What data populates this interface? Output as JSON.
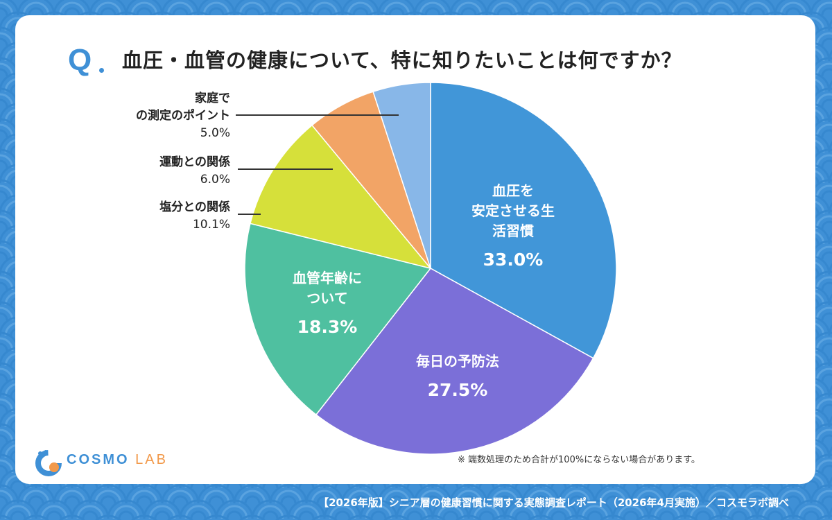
{
  "question": {
    "mark": "Q",
    "text": "血圧・血管の健康について、特に知りたいことは何ですか？"
  },
  "chart_data": {
    "type": "pie",
    "start_angle_deg": 0,
    "direction": "clockwise",
    "slices": [
      {
        "label_lines": [
          "血圧を",
          "安定させる生",
          "活習慣"
        ],
        "value": 33.0,
        "display": "33.0%",
        "color": "#4196d8",
        "label_placement": "inside"
      },
      {
        "label_lines": [
          "毎日の予防法"
        ],
        "value": 27.5,
        "display": "27.5%",
        "color": "#7b6fd8",
        "label_placement": "inside"
      },
      {
        "label_lines": [
          "血管年齢に",
          "ついて"
        ],
        "value": 18.3,
        "display": "18.3%",
        "color": "#4fc0a0",
        "label_placement": "inside"
      },
      {
        "label_lines": [
          "塩分との関係"
        ],
        "value": 10.1,
        "display": "10.1%",
        "color": "#d6e03a",
        "label_placement": "outside"
      },
      {
        "label_lines": [
          "運動との関係"
        ],
        "value": 6.0,
        "display": "6.0%",
        "color": "#f2a466",
        "label_placement": "outside"
      },
      {
        "label_lines": [
          "家庭で",
          "の測定のポイント"
        ],
        "value": 5.0,
        "display": "5.0%",
        "color": "#88b7e8",
        "label_placement": "outside"
      }
    ]
  },
  "note": "※ 端数処理のため合計が100%にならない場合があります。",
  "footer": "【2026年版】シニア層の健康習慣に関する実態調査レポート（2026年4月実施）／コスモラボ調べ",
  "logo": {
    "part1": "COSMO",
    "part2": "LAB",
    "primary_color": "#3f90d6",
    "accent_color": "#f2994a"
  }
}
